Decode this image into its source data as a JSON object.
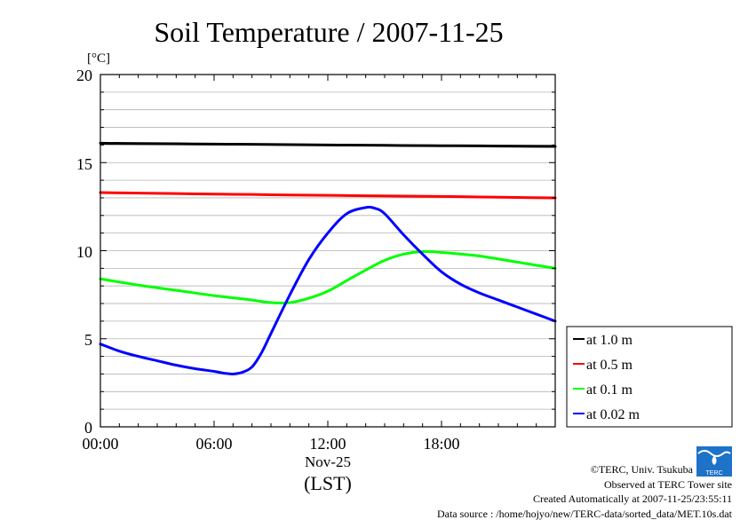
{
  "chart_data": {
    "type": "line",
    "title": "Soil Temperature / 2007-11-25",
    "unit_label": "[°C]",
    "ylim": [
      0,
      20
    ],
    "yticks": [
      "0",
      "5",
      "10",
      "15",
      "20"
    ],
    "xlim": [
      0,
      24
    ],
    "xticks": [
      "00:00",
      "06:00",
      "12:00",
      "18:00"
    ],
    "date_label": "Nov-25",
    "xlabel": "(LST)",
    "grid": true,
    "legend_position": "right",
    "series": [
      {
        "name": "at 1.0 m",
        "color": "#000000",
        "x": [
          0,
          2,
          4,
          6,
          8,
          10,
          12,
          14,
          16,
          18,
          20,
          22,
          24
        ],
        "y": [
          16.1,
          16.08,
          16.07,
          16.05,
          16.04,
          16.02,
          16.0,
          15.99,
          15.97,
          15.96,
          15.95,
          15.93,
          15.92
        ]
      },
      {
        "name": "at 0.5 m",
        "color": "#ff0000",
        "x": [
          0,
          2,
          4,
          6,
          8,
          10,
          12,
          14,
          16,
          18,
          20,
          22,
          24
        ],
        "y": [
          13.3,
          13.27,
          13.24,
          13.21,
          13.19,
          13.16,
          13.14,
          13.12,
          13.1,
          13.08,
          13.05,
          13.02,
          13.0
        ]
      },
      {
        "name": "at 0.1 m",
        "color": "#00ff00",
        "x": [
          0,
          2,
          4,
          6,
          8,
          9,
          10,
          11,
          12,
          13,
          14,
          15,
          16,
          17,
          18,
          20,
          22,
          24
        ],
        "y": [
          8.4,
          8.05,
          7.75,
          7.45,
          7.2,
          7.05,
          7.05,
          7.3,
          7.7,
          8.3,
          8.9,
          9.45,
          9.8,
          9.95,
          9.9,
          9.7,
          9.35,
          9.0
        ]
      },
      {
        "name": "at 0.02 m",
        "color": "#0000ff",
        "x": [
          0,
          1,
          2,
          3,
          4,
          5,
          6,
          6.5,
          7,
          7.5,
          8,
          8.5,
          9,
          10,
          11,
          12,
          13,
          14,
          14.5,
          15,
          16,
          17,
          18,
          19,
          20,
          21,
          22,
          23,
          24
        ],
        "y": [
          4.7,
          4.3,
          4.0,
          3.75,
          3.5,
          3.3,
          3.15,
          3.05,
          3.0,
          3.1,
          3.4,
          4.2,
          5.3,
          7.5,
          9.5,
          11.0,
          12.1,
          12.45,
          12.4,
          12.1,
          10.9,
          9.8,
          8.8,
          8.1,
          7.6,
          7.2,
          6.8,
          6.4,
          6.0
        ]
      }
    ]
  },
  "credits": {
    "copyright": "©TERC, Univ. Tsukuba",
    "observed": "Observed at TERC Tower site",
    "created": "Created Automatically at 2007-11-25/23:55:11",
    "source": "Data source : /home/hojyo/new/TERC-data/sorted_data/MET.10s.dat",
    "logo_text": "TERC"
  }
}
